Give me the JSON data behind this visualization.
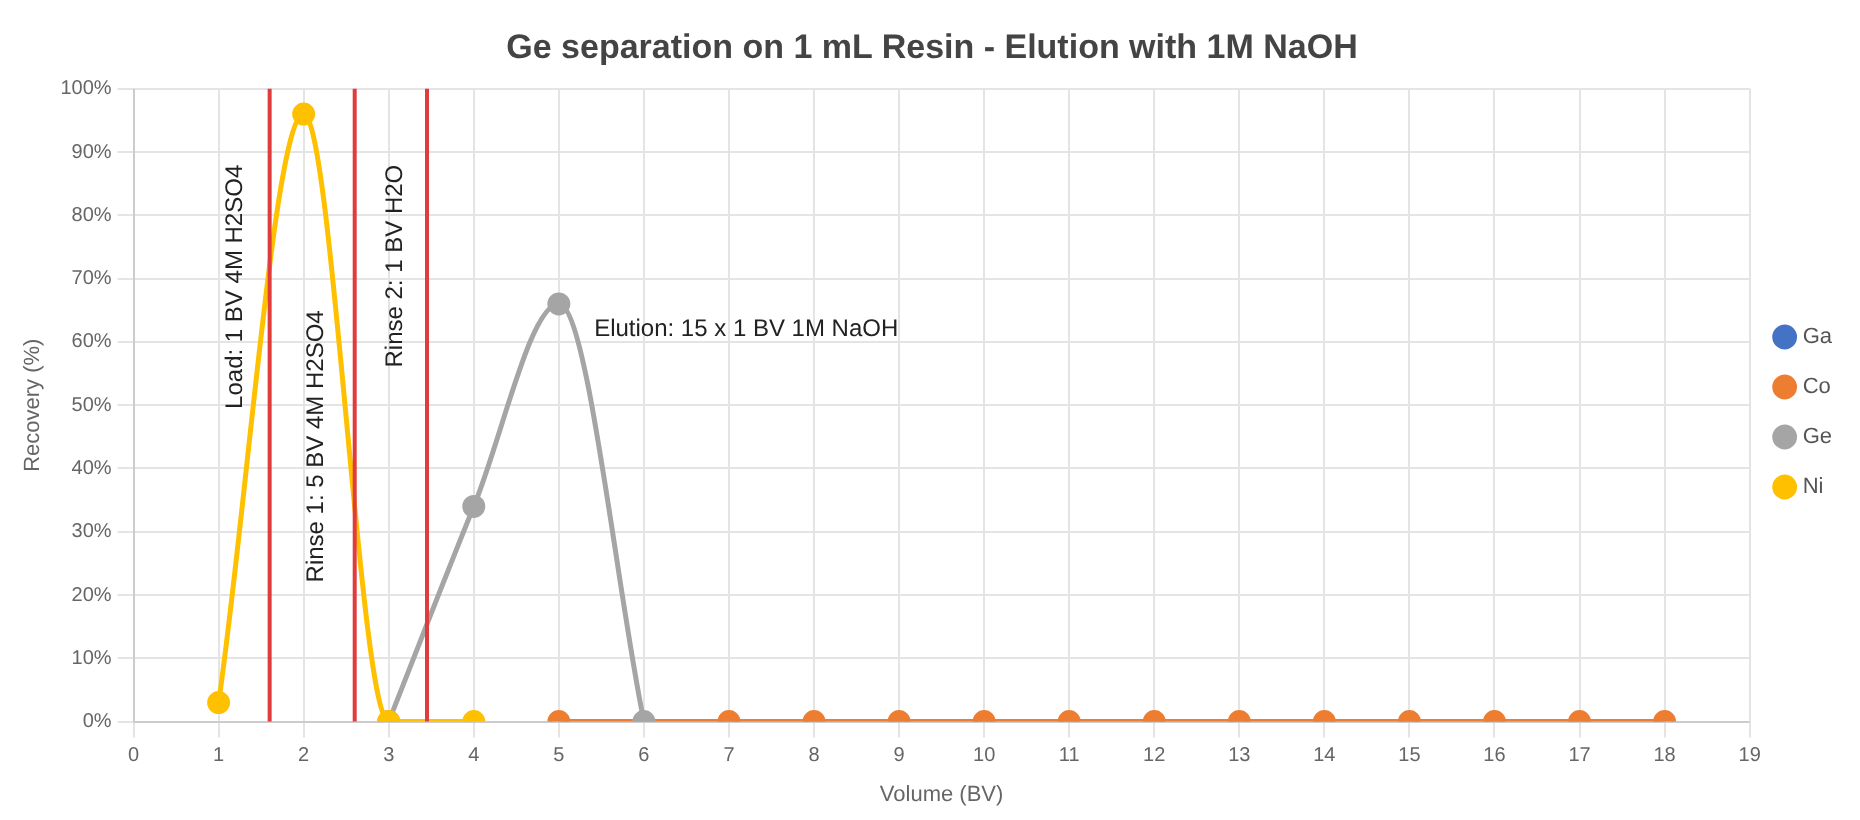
{
  "chart_data": {
    "type": "line",
    "title": "Ge separation on 1 mL Resin - Elution with 1M NaOH",
    "xlabel": "Volume (BV)",
    "ylabel": "Recovery (%)",
    "x": [
      1,
      2,
      3,
      4,
      5,
      6,
      7,
      8,
      9,
      10,
      11,
      12,
      13,
      14,
      15,
      16,
      17,
      18
    ],
    "series": [
      {
        "name": "Ga",
        "color": "#4472c4",
        "values": [
          null,
          null,
          null,
          null,
          null,
          null,
          null,
          null,
          null,
          null,
          null,
          null,
          null,
          null,
          null,
          null,
          null,
          null
        ]
      },
      {
        "name": "Co",
        "color": "#ed7d31",
        "values": [
          null,
          null,
          null,
          null,
          0,
          null,
          0,
          0,
          0,
          0,
          0,
          0,
          0,
          0,
          0,
          0,
          0,
          0
        ]
      },
      {
        "name": "Ge",
        "color": "#a5a5a5",
        "values": [
          null,
          null,
          0,
          34,
          66,
          0,
          null,
          null,
          null,
          null,
          null,
          null,
          null,
          null,
          null,
          null,
          null,
          null
        ]
      },
      {
        "name": "Ni",
        "color": "#ffc000",
        "values": [
          3,
          96,
          0,
          0,
          null,
          null,
          null,
          null,
          null,
          null,
          null,
          null,
          null,
          null,
          null,
          null,
          null,
          null
        ]
      }
    ],
    "xlim": [
      0,
      19
    ],
    "xticks": [
      0,
      1,
      2,
      3,
      4,
      5,
      6,
      7,
      8,
      9,
      10,
      11,
      12,
      13,
      14,
      15,
      16,
      17,
      18,
      19
    ],
    "ylim": [
      0,
      100
    ],
    "yticks": [
      {
        "value": 0,
        "label": "0%"
      },
      {
        "value": 10,
        "label": "10%"
      },
      {
        "value": 20,
        "label": "20%"
      },
      {
        "value": 30,
        "label": "30%"
      },
      {
        "value": 40,
        "label": "40%"
      },
      {
        "value": 50,
        "label": "50%"
      },
      {
        "value": 60,
        "label": "60%"
      },
      {
        "value": 70,
        "label": "70%"
      },
      {
        "value": 80,
        "label": "80%"
      },
      {
        "value": 90,
        "label": "90%"
      },
      {
        "value": 100,
        "label": "100%"
      }
    ],
    "ref_lines": [
      {
        "axis": "x",
        "value": 1.6,
        "color": "#e03c3c"
      },
      {
        "axis": "x",
        "value": 2.6,
        "color": "#e03c3c"
      },
      {
        "axis": "x",
        "value": 3.45,
        "color": "#e03c3c"
      }
    ],
    "annotations": [
      "Load: 1 BV 4M H2SO4",
      "Rinse 1: 5 BV 4M H2SO4",
      "Rinse 2: 1 BV H2O",
      "Elution: 15 x 1 BV 1M NaOH"
    ],
    "grid": true,
    "legend": "right",
    "marker": "circle",
    "line_style": "solid"
  }
}
